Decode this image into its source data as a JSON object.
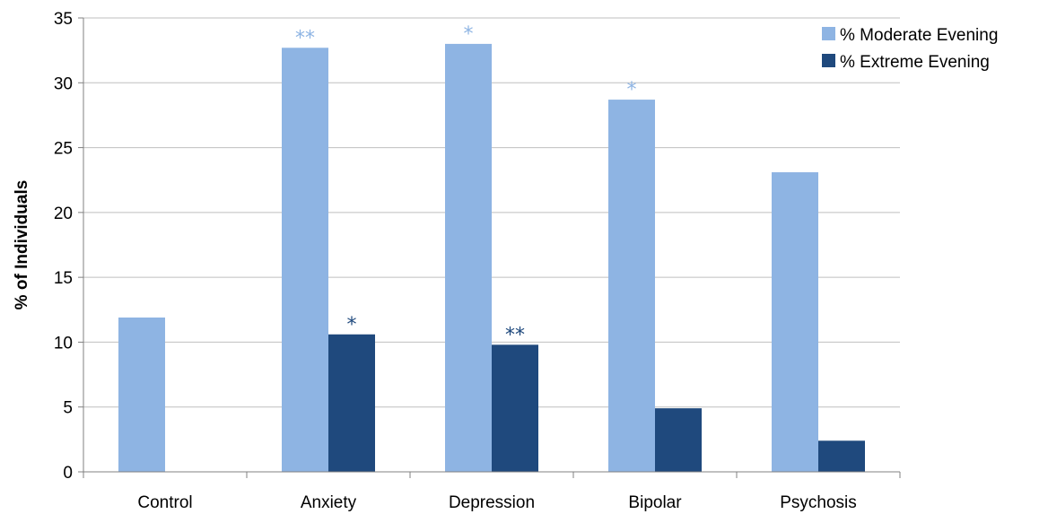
{
  "chart_data": {
    "type": "bar",
    "title": "",
    "xlabel": "",
    "ylabel": "% of Individuals",
    "ylim": [
      0,
      35
    ],
    "yticks": [
      0,
      5,
      10,
      15,
      20,
      25,
      30,
      35
    ],
    "grid": true,
    "legend_position": "top-right",
    "categories": [
      "Control",
      "Anxiety",
      "Depression",
      "Bipolar",
      "Psychosis"
    ],
    "series": [
      {
        "name": "% Moderate Evening",
        "color": "#8EB4E3",
        "values": [
          11.9,
          32.7,
          33.0,
          28.7,
          23.1
        ],
        "annotations": [
          "",
          "**",
          "*",
          "*",
          ""
        ]
      },
      {
        "name": "% Extreme Evening",
        "color": "#1F497D",
        "values": [
          0,
          10.6,
          9.8,
          4.9,
          2.4
        ],
        "annotations": [
          "",
          "*",
          "**",
          "",
          ""
        ]
      }
    ]
  }
}
